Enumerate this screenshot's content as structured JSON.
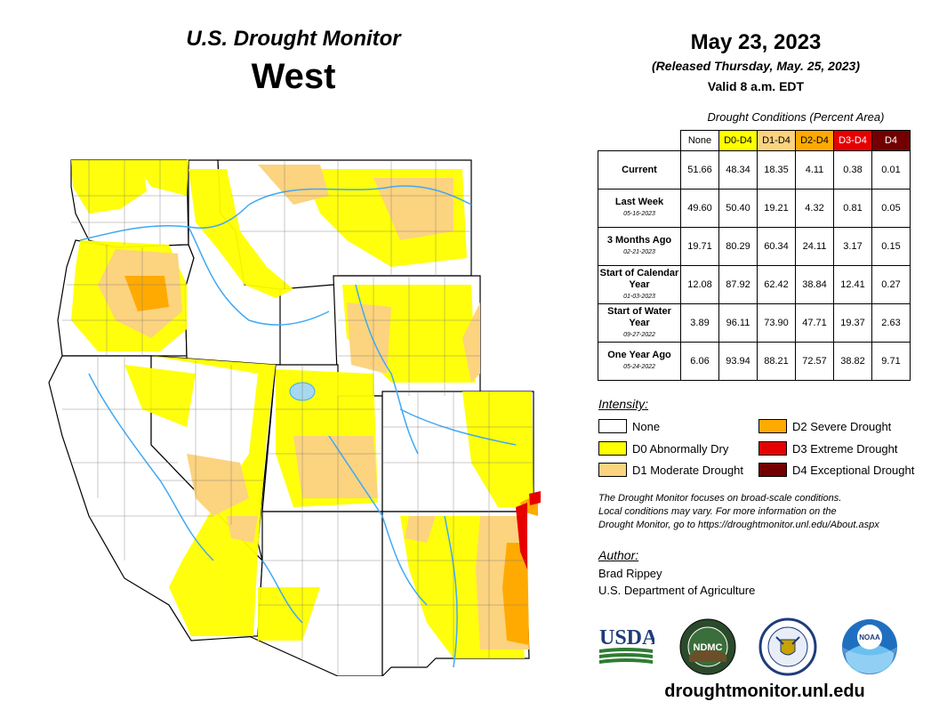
{
  "header": {
    "product": "U.S. Drought Monitor",
    "region": "West",
    "date": "May 23, 2023",
    "released": "(Released Thursday, May. 25, 2023)",
    "valid": "Valid 8 a.m. EDT"
  },
  "table": {
    "caption": "Drought Conditions (Percent Area)",
    "columns": [
      {
        "label": "None",
        "color": "#ffffff",
        "text_color": "#000000"
      },
      {
        "label": "D0-D4",
        "color": "#ffff00",
        "text_color": "#000000"
      },
      {
        "label": "D1-D4",
        "color": "#fcd37f",
        "text_color": "#000000"
      },
      {
        "label": "D2-D4",
        "color": "#ffaa00",
        "text_color": "#000000"
      },
      {
        "label": "D3-D4",
        "color": "#e60000",
        "text_color": "#ffffff"
      },
      {
        "label": "D4",
        "color": "#730000",
        "text_color": "#ffffff"
      }
    ],
    "rows": [
      {
        "label": "Current",
        "sub": "",
        "values": [
          "51.66",
          "48.34",
          "18.35",
          "4.11",
          "0.38",
          "0.01"
        ]
      },
      {
        "label": "Last Week",
        "sub": "05-16-2023",
        "values": [
          "49.60",
          "50.40",
          "19.21",
          "4.32",
          "0.81",
          "0.05"
        ]
      },
      {
        "label": "3 Months Ago",
        "sub": "02-21-2023",
        "values": [
          "19.71",
          "80.29",
          "60.34",
          "24.11",
          "3.17",
          "0.15"
        ]
      },
      {
        "label": "Start of Calendar Year",
        "sub": "01-03-2023",
        "values": [
          "12.08",
          "87.92",
          "62.42",
          "38.84",
          "12.41",
          "0.27"
        ]
      },
      {
        "label": "Start of Water Year",
        "sub": "09-27-2022",
        "values": [
          "3.89",
          "96.11",
          "73.90",
          "47.71",
          "19.37",
          "2.63"
        ]
      },
      {
        "label": "One Year Ago",
        "sub": "05-24-2022",
        "values": [
          "6.06",
          "93.94",
          "88.21",
          "72.57",
          "38.82",
          "9.71"
        ]
      }
    ]
  },
  "legend": {
    "title": "Intensity:",
    "items": [
      {
        "label": "None",
        "color": "#ffffff"
      },
      {
        "label": "D0 Abnormally Dry",
        "color": "#ffff00"
      },
      {
        "label": "D1 Moderate Drought",
        "color": "#fcd37f"
      },
      {
        "label": "D2 Severe Drought",
        "color": "#ffaa00"
      },
      {
        "label": "D3 Extreme Drought",
        "color": "#e60000"
      },
      {
        "label": "D4 Exceptional Drought",
        "color": "#730000"
      }
    ]
  },
  "disclaimer": [
    "The Drought Monitor focuses on broad-scale conditions.",
    "Local conditions may vary. For more information on the",
    "Drought Monitor, go to https://droughtmonitor.unl.edu/About.aspx"
  ],
  "author": {
    "title": "Author:",
    "name": "Brad Rippey",
    "org": "U.S. Department of Agriculture"
  },
  "logos": {
    "usda": "USDA",
    "ndmc": "NDMC",
    "noaa": "NOAA"
  },
  "footer": {
    "url": "droughtmonitor.unl.edu"
  },
  "colors": {
    "none": "#ffffff",
    "d0": "#ffff00",
    "d1": "#fcd37f",
    "d2": "#ffaa00",
    "d3": "#e60000",
    "d4": "#730000",
    "water": "#3fa9f5",
    "lake": "#a6d8f0"
  }
}
